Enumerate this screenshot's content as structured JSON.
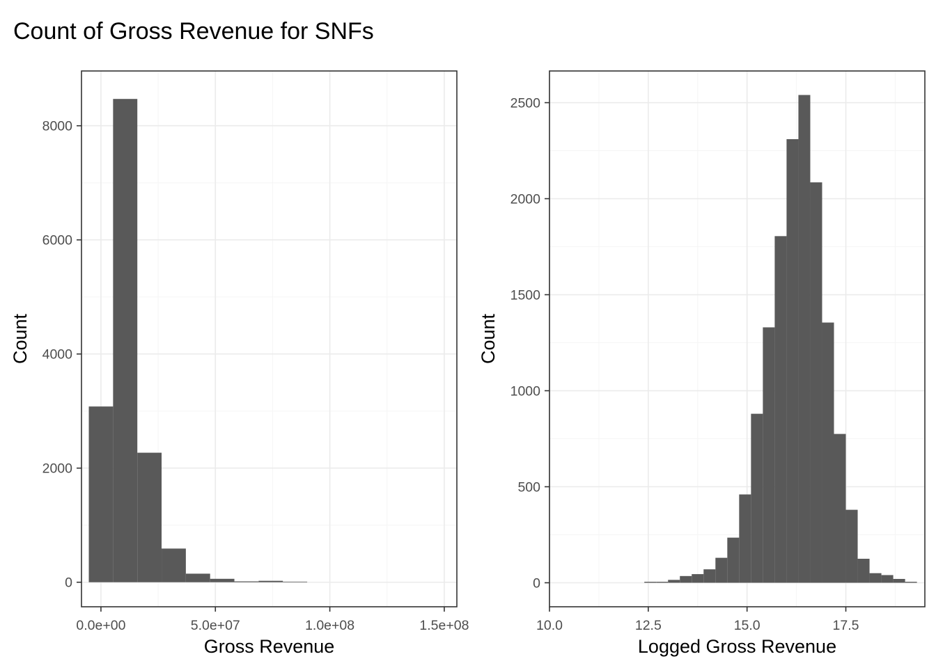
{
  "title": "Count of Gross Revenue for SNFs",
  "colors": {
    "bar": "#595959",
    "grid_major": "#ebebeb",
    "grid_minor": "#f5f5f5",
    "panel_border": "#333333",
    "tick_text": "#4d4d4d"
  },
  "chart_data": [
    {
      "type": "bar",
      "subtype": "histogram",
      "xlabel": "Gross Revenue",
      "ylabel": "Count",
      "xlim": [
        -8500000,
        155500000
      ],
      "ylim": [
        -430,
        8960
      ],
      "x_ticks": [
        0,
        50000000,
        100000000,
        150000000
      ],
      "x_tick_labels": [
        "0.0e+00",
        "5.0e+07",
        "1.0e+08",
        "1.5e+08"
      ],
      "y_ticks": [
        0,
        2000,
        4000,
        6000,
        8000
      ],
      "y_tick_labels": [
        "0",
        "2000",
        "4000",
        "6000",
        "8000"
      ],
      "grid": true,
      "bins": [
        {
          "x0": -5300000,
          "x1": 5300000,
          "count": 3080
        },
        {
          "x0": 5300000,
          "x1": 15900000,
          "count": 8470
        },
        {
          "x0": 15900000,
          "x1": 26500000,
          "count": 2270
        },
        {
          "x0": 26500000,
          "x1": 37100000,
          "count": 590
        },
        {
          "x0": 37100000,
          "x1": 47700000,
          "count": 150
        },
        {
          "x0": 47700000,
          "x1": 58300000,
          "count": 60
        },
        {
          "x0": 58300000,
          "x1": 68900000,
          "count": 15
        },
        {
          "x0": 68900000,
          "x1": 79500000,
          "count": 25
        },
        {
          "x0": 79500000,
          "x1": 90100000,
          "count": 10
        }
      ]
    },
    {
      "type": "bar",
      "subtype": "histogram",
      "xlabel": "Logged Gross Revenue",
      "ylabel": "Count",
      "xlim": [
        10.0,
        19.5
      ],
      "ylim": [
        -125,
        2665
      ],
      "x_ticks": [
        10.0,
        12.5,
        15.0,
        17.5
      ],
      "x_tick_labels": [
        "10.0",
        "12.5",
        "15.0",
        "17.5"
      ],
      "y_ticks": [
        0,
        500,
        1000,
        1500,
        2000,
        2500
      ],
      "y_tick_labels": [
        "0",
        "500",
        "1000",
        "1500",
        "2000",
        "2500"
      ],
      "grid": true,
      "bin_start": 12.4,
      "bin_width": 0.3,
      "counts": [
        5,
        5,
        15,
        35,
        45,
        70,
        130,
        235,
        460,
        880,
        1330,
        1805,
        2310,
        2540,
        2085,
        1355,
        775,
        380,
        125,
        50,
        40,
        20,
        5
      ]
    }
  ]
}
